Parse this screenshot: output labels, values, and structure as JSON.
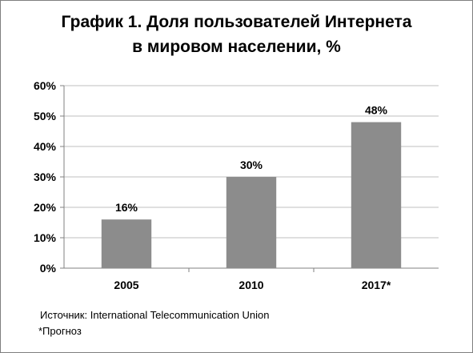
{
  "chart_data": {
    "type": "bar",
    "title_lines": [
      "График 1. Доля пользователей Интернета",
      "в мировом населении, %"
    ],
    "categories": [
      "2005",
      "2010",
      "2017*"
    ],
    "values": [
      16,
      30,
      48
    ],
    "data_labels": [
      "16%",
      "30%",
      "48%"
    ],
    "y_ticks": [
      "0%",
      "10%",
      "20%",
      "30%",
      "40%",
      "50%",
      "60%"
    ],
    "ylim": [
      0,
      60
    ],
    "grid": true,
    "xlabel": "",
    "ylabel": "",
    "bar_color": "#8c8c8c",
    "grid_color": "#bfbfbf"
  },
  "notes": {
    "source": "Источник: International Telecommunication  Union",
    "footnote": "*Прогноз"
  }
}
